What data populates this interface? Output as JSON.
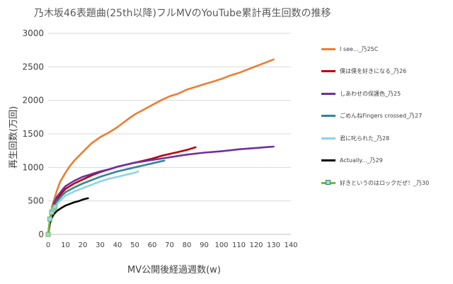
{
  "chart_data": {
    "type": "line",
    "title": "乃木坂46表題曲(25th以降)フルMVのYouTube累計再生回数の推移",
    "xlabel": "MV公開後経過週数(w)",
    "ylabel": "再生回数(万回)",
    "xlim": [
      0,
      140
    ],
    "ylim": [
      0,
      3000
    ],
    "x_ticks": [
      0,
      10,
      20,
      30,
      40,
      50,
      60,
      70,
      80,
      90,
      100,
      110,
      120,
      130,
      140
    ],
    "y_ticks": [
      0,
      500,
      1000,
      1500,
      2000,
      2500,
      3000
    ],
    "grid": "horizontal",
    "legend_position": "right",
    "series": [
      {
        "name": "I see..._乃25C",
        "color": "#ed7d31",
        "points": [
          [
            0,
            0
          ],
          [
            1,
            220
          ],
          [
            2,
            380
          ],
          [
            3,
            480
          ],
          [
            5,
            650
          ],
          [
            7,
            790
          ],
          [
            10,
            920
          ],
          [
            12,
            1000
          ],
          [
            15,
            1100
          ],
          [
            20,
            1230
          ],
          [
            25,
            1360
          ],
          [
            30,
            1450
          ],
          [
            35,
            1520
          ],
          [
            40,
            1600
          ],
          [
            45,
            1700
          ],
          [
            50,
            1790
          ],
          [
            55,
            1860
          ],
          [
            60,
            1930
          ],
          [
            65,
            2000
          ],
          [
            70,
            2060
          ],
          [
            75,
            2100
          ],
          [
            80,
            2160
          ],
          [
            85,
            2200
          ],
          [
            90,
            2240
          ],
          [
            95,
            2280
          ],
          [
            100,
            2320
          ],
          [
            105,
            2370
          ],
          [
            110,
            2410
          ],
          [
            115,
            2460
          ],
          [
            120,
            2510
          ],
          [
            125,
            2560
          ],
          [
            130,
            2610
          ]
        ]
      },
      {
        "name": "僕は僕を好きになる_乃26",
        "color": "#c00000",
        "points": [
          [
            0,
            0
          ],
          [
            1,
            200
          ],
          [
            2,
            320
          ],
          [
            3,
            400
          ],
          [
            5,
            520
          ],
          [
            8,
            620
          ],
          [
            10,
            680
          ],
          [
            15,
            760
          ],
          [
            20,
            820
          ],
          [
            25,
            880
          ],
          [
            30,
            930
          ],
          [
            35,
            970
          ],
          [
            40,
            1010
          ],
          [
            45,
            1040
          ],
          [
            50,
            1070
          ],
          [
            55,
            1100
          ],
          [
            60,
            1130
          ],
          [
            65,
            1170
          ],
          [
            70,
            1200
          ],
          [
            75,
            1230
          ],
          [
            80,
            1260
          ],
          [
            85,
            1300
          ]
        ]
      },
      {
        "name": "しあわせの保護色_乃25",
        "color": "#7030a0",
        "points": [
          [
            0,
            0
          ],
          [
            1,
            220
          ],
          [
            2,
            360
          ],
          [
            3,
            450
          ],
          [
            5,
            560
          ],
          [
            8,
            660
          ],
          [
            10,
            720
          ],
          [
            15,
            800
          ],
          [
            20,
            860
          ],
          [
            25,
            900
          ],
          [
            30,
            940
          ],
          [
            35,
            970
          ],
          [
            40,
            1010
          ],
          [
            45,
            1040
          ],
          [
            50,
            1070
          ],
          [
            55,
            1090
          ],
          [
            60,
            1110
          ],
          [
            65,
            1130
          ],
          [
            70,
            1150
          ],
          [
            75,
            1170
          ],
          [
            80,
            1190
          ],
          [
            90,
            1220
          ],
          [
            100,
            1240
          ],
          [
            110,
            1270
          ],
          [
            120,
            1290
          ],
          [
            130,
            1310
          ]
        ]
      },
      {
        "name": "ごめんねFingers crossed_乃27",
        "color": "#31859c",
        "points": [
          [
            0,
            0
          ],
          [
            1,
            180
          ],
          [
            2,
            300
          ],
          [
            3,
            380
          ],
          [
            5,
            490
          ],
          [
            8,
            580
          ],
          [
            10,
            630
          ],
          [
            15,
            700
          ],
          [
            20,
            760
          ],
          [
            25,
            810
          ],
          [
            30,
            860
          ],
          [
            35,
            900
          ],
          [
            40,
            940
          ],
          [
            45,
            970
          ],
          [
            50,
            1000
          ],
          [
            55,
            1030
          ],
          [
            60,
            1060
          ],
          [
            65,
            1090
          ],
          [
            67,
            1100
          ]
        ]
      },
      {
        "name": "君に叱られた_乃28",
        "color": "#8dd3e8",
        "points": [
          [
            0,
            0
          ],
          [
            1,
            170
          ],
          [
            2,
            280
          ],
          [
            3,
            360
          ],
          [
            5,
            450
          ],
          [
            8,
            530
          ],
          [
            10,
            580
          ],
          [
            15,
            640
          ],
          [
            20,
            690
          ],
          [
            25,
            740
          ],
          [
            30,
            790
          ],
          [
            35,
            830
          ],
          [
            40,
            860
          ],
          [
            45,
            890
          ],
          [
            50,
            920
          ],
          [
            52,
            940
          ]
        ]
      },
      {
        "name": "Actually..._乃29",
        "color": "#000000",
        "points": [
          [
            0,
            0
          ],
          [
            1,
            160
          ],
          [
            2,
            240
          ],
          [
            3,
            290
          ],
          [
            5,
            350
          ],
          [
            8,
            400
          ],
          [
            10,
            430
          ],
          [
            12,
            450
          ],
          [
            15,
            480
          ],
          [
            18,
            500
          ],
          [
            20,
            520
          ],
          [
            23,
            540
          ]
        ]
      },
      {
        "name": "好きというのはロックだぜ！_乃30",
        "color": "#7cb342",
        "marker_color": "#99d9ea",
        "points": [
          [
            0,
            0
          ],
          [
            1,
            230
          ],
          [
            2,
            330
          ],
          [
            3,
            380
          ],
          [
            4,
            410
          ]
        ]
      }
    ]
  }
}
